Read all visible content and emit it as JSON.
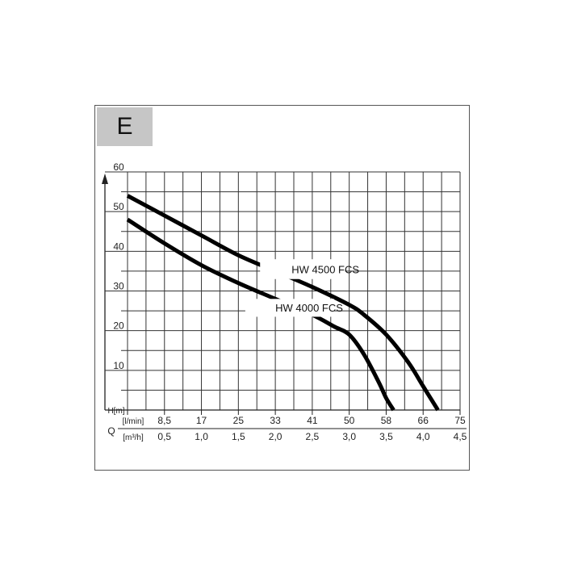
{
  "badge": {
    "letter": "E",
    "color": "#c6c6c6"
  },
  "chart_data": {
    "type": "line",
    "title": "",
    "grid": true,
    "ylabel": "H[m]",
    "xlabel_prefix": "Q",
    "x_unit_top": "[l/min]",
    "x_unit_bottom": "[m³/h]",
    "x_ticks_top": [
      "8,5",
      "17",
      "25",
      "33",
      "41",
      "50",
      "58",
      "66",
      "75"
    ],
    "x_ticks_bottom": [
      "0,5",
      "1,0",
      "1,5",
      "2,0",
      "2,5",
      "3,0",
      "3,5",
      "4,0",
      "4,5"
    ],
    "xlim": [
      0,
      4.5
    ],
    "ylim": [
      0,
      60
    ],
    "y_ticks": [
      10,
      20,
      30,
      40,
      50,
      60
    ],
    "series": [
      {
        "name": "HW 4500 FCS",
        "color": "#000000",
        "x": [
          0,
          0.5,
          1.0,
          1.5,
          2.0,
          2.5,
          3.0,
          3.2,
          3.5,
          3.8,
          4.0,
          4.2
        ],
        "y": [
          54,
          49,
          44,
          39,
          35,
          31,
          26.5,
          24,
          19,
          12,
          6,
          0
        ]
      },
      {
        "name": "HW 4000 FCS",
        "color": "#000000",
        "x": [
          0,
          0.5,
          1.0,
          1.5,
          2.0,
          2.5,
          2.8,
          3.0,
          3.2,
          3.4,
          3.5,
          3.6
        ],
        "y": [
          48,
          42,
          36.5,
          32,
          28,
          24,
          21,
          19,
          14,
          7,
          3,
          0
        ]
      }
    ]
  }
}
